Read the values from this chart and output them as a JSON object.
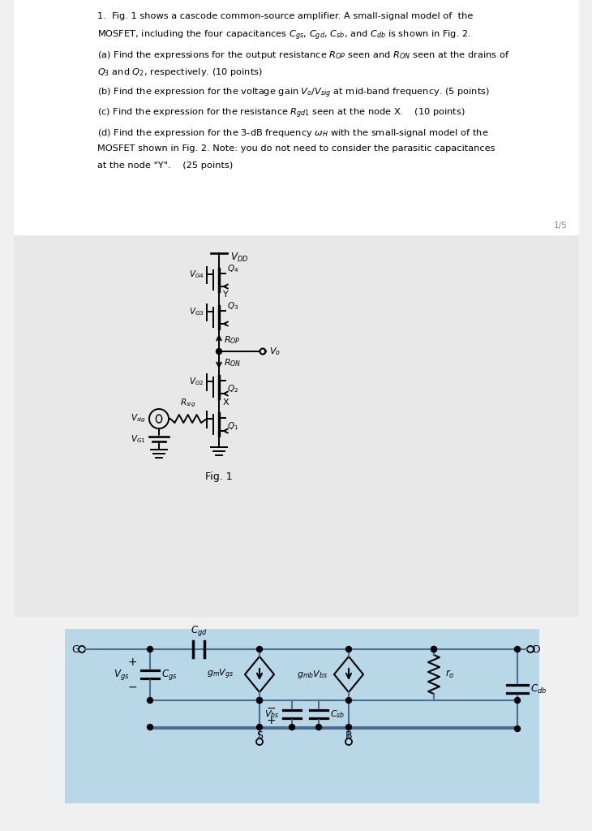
{
  "page_bg": "#f0f0f0",
  "text_area_bg": "#ffffff",
  "fig2_bg": "#b8d8e8",
  "circuit_line_color": "#000000",
  "wire_color": "#4a7090"
}
